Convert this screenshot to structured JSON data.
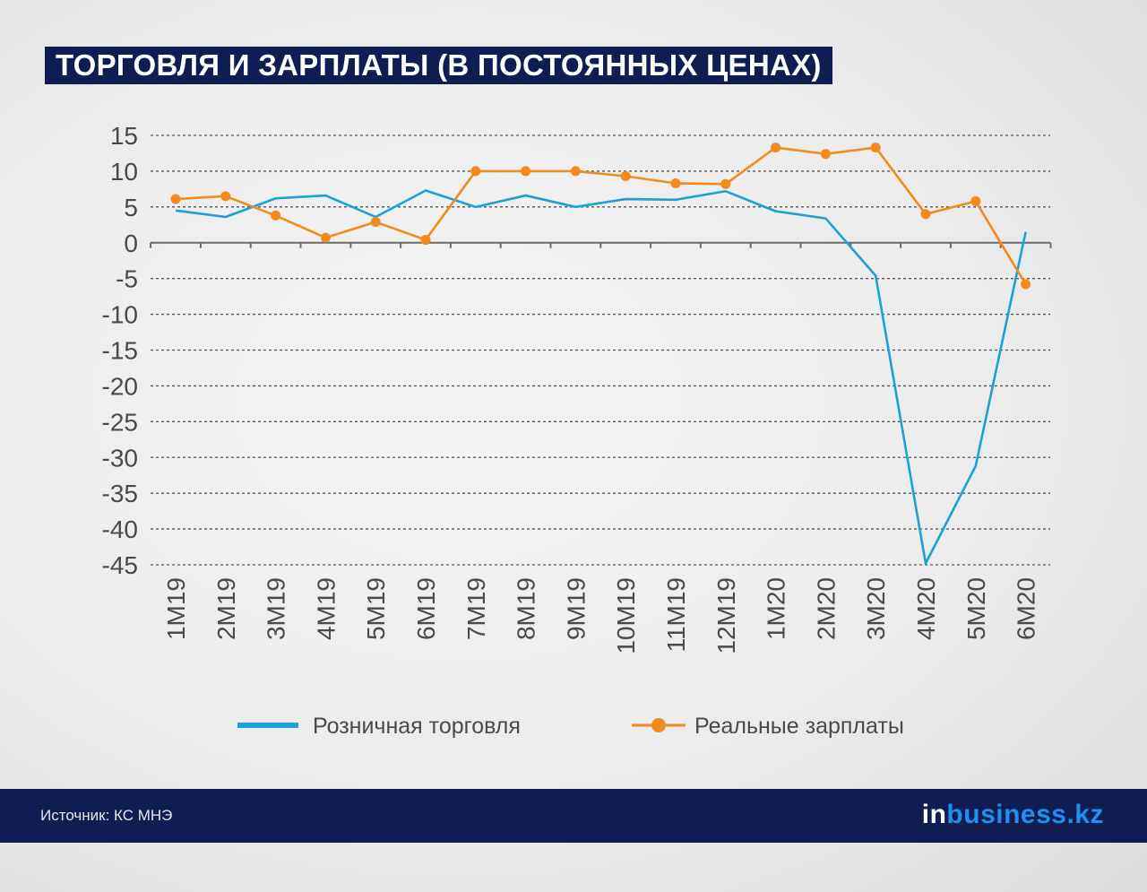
{
  "header": {
    "title": "ТОРГОВЛЯ И ЗАРПЛАТЫ (В ПОСТОЯННЫХ ЦЕНАХ)"
  },
  "footer": {
    "source_label": "Источник:  КС МНЭ",
    "brand_prefix": "in",
    "brand_rest": "business.kz"
  },
  "colors": {
    "retail": "#1ea0d8",
    "wages": "#f28a1e",
    "dark_navy": "#0f1d52",
    "gridline": "#555555"
  },
  "chart_data": {
    "type": "line",
    "categories": [
      "1M19",
      "2M19",
      "3M19",
      "4M19",
      "5M19",
      "6M19",
      "7M19",
      "8M19",
      "9M19",
      "10M19",
      "11M19",
      "12M19",
      "1M20",
      "2M20",
      "3M20",
      "4M20",
      "5M20",
      "6M20"
    ],
    "ylim": [
      -45,
      15
    ],
    "yticks": [
      "15",
      "10",
      "5",
      "0",
      "-5",
      "-10",
      "-15",
      "-20",
      "-25",
      "-30",
      "-35",
      "-40",
      "-45"
    ],
    "grid": true,
    "legend_position": "bottom",
    "series": [
      {
        "name": "Розничная торговля",
        "marker": "none",
        "values": [
          4.5,
          3.6,
          6.2,
          6.6,
          3.6,
          7.3,
          5.0,
          6.6,
          5.0,
          6.1,
          6.0,
          7.2,
          4.4,
          3.4,
          -4.6,
          -44.8,
          -31.2,
          1.5
        ]
      },
      {
        "name": "Реальные зарплаты",
        "marker": "circle",
        "values": [
          6.1,
          6.5,
          3.8,
          0.7,
          2.9,
          0.4,
          10.0,
          10.0,
          10.0,
          9.3,
          8.3,
          8.2,
          13.3,
          12.4,
          13.3,
          4.0,
          5.8,
          -5.8
        ]
      }
    ]
  }
}
